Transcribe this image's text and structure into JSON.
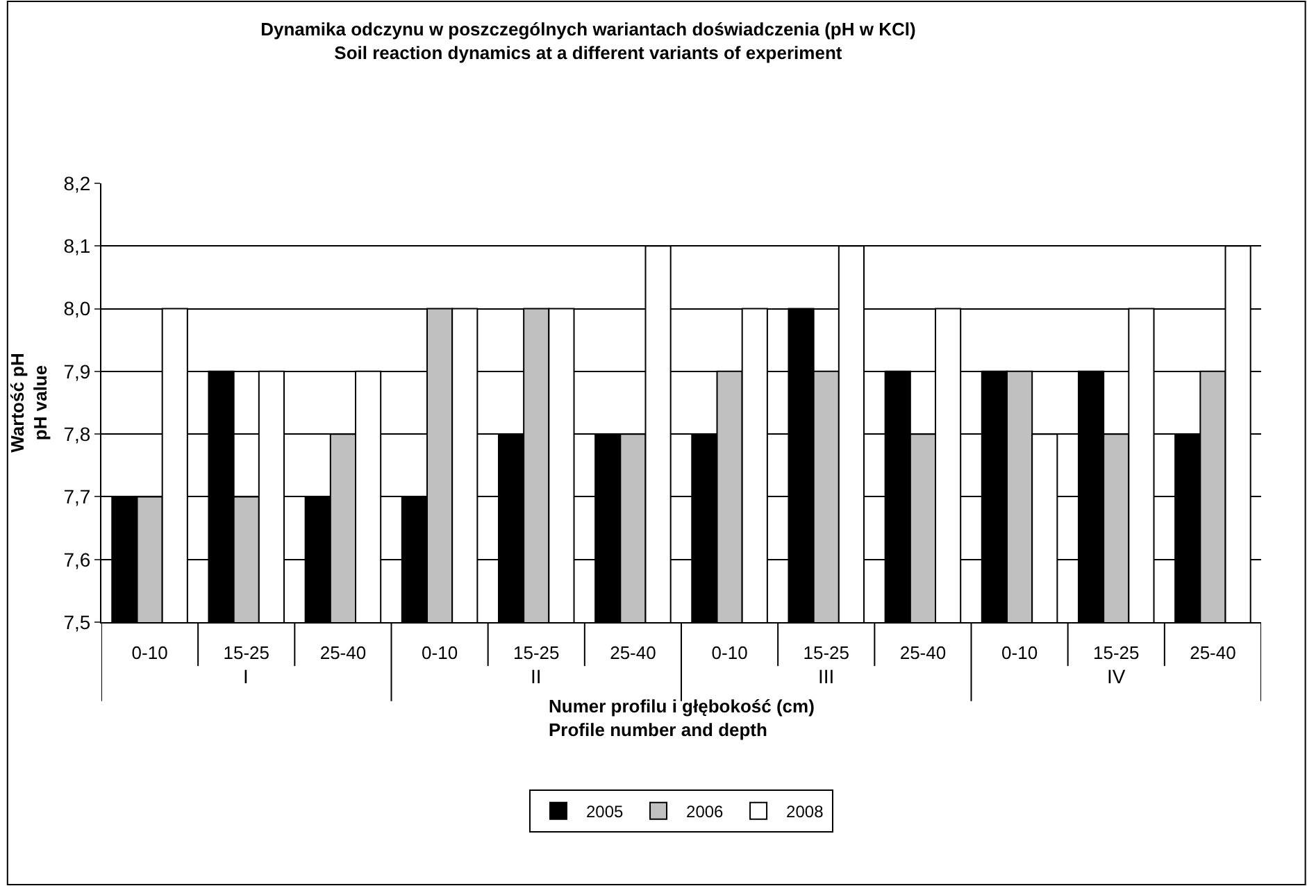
{
  "chart_data": {
    "type": "bar",
    "title": "Dynamika odczynu w poszczególnych wariantach doświadczenia (pH w KCl)\nSoil reaction dynamics at a different variants of experiment",
    "xlabel": "Numer profilu i głębokość (cm)\nProfile number and depth",
    "ylabel": "Wartość pH\npH value",
    "categories": [
      "0-10",
      "15-25",
      "25-40",
      "0-10",
      "15-25",
      "25-40",
      "0-10",
      "15-25",
      "25-40",
      "0-10",
      "15-25",
      "25-40"
    ],
    "annotations": [
      "I",
      "II",
      "III",
      "IV"
    ],
    "series": [
      {
        "name": "2005",
        "color": "#000000",
        "values": [
          7.7,
          7.9,
          7.7,
          7.7,
          7.8,
          7.8,
          7.8,
          8.0,
          7.9,
          7.9,
          7.9,
          7.8
        ]
      },
      {
        "name": "2006",
        "color": "#c0c0c0",
        "values": [
          7.7,
          7.7,
          7.8,
          8.0,
          8.0,
          7.8,
          7.9,
          7.9,
          7.8,
          7.9,
          7.8,
          7.9
        ]
      },
      {
        "name": "2008",
        "color": "#ffffff",
        "values": [
          8.0,
          7.9,
          7.9,
          8.0,
          8.0,
          8.1,
          8.0,
          8.1,
          8.0,
          7.8,
          8.0,
          8.1
        ]
      }
    ],
    "ylim": [
      7.5,
      8.2
    ],
    "yticks": [
      {
        "value": 7.5,
        "label": "7,5"
      },
      {
        "value": 7.6,
        "label": "7,6"
      },
      {
        "value": 7.7,
        "label": "7,7"
      },
      {
        "value": 7.8,
        "label": "7,8"
      },
      {
        "value": 7.9,
        "label": "7,9"
      },
      {
        "value": 8.0,
        "label": "8,0"
      },
      {
        "value": 8.1,
        "label": "8,1"
      },
      {
        "value": 8.2,
        "label": "8,2"
      }
    ],
    "grid": "y",
    "legend": "bottom"
  }
}
